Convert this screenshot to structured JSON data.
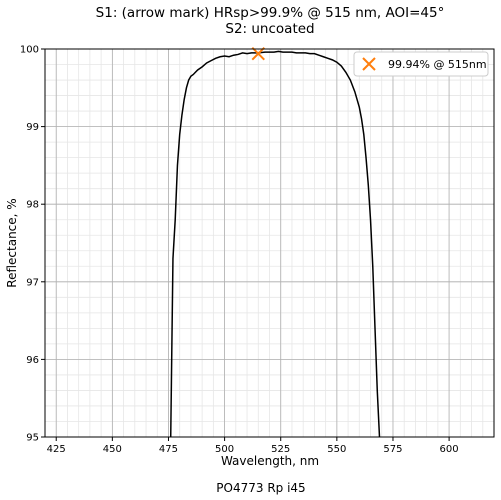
{
  "chart_data": {
    "type": "line",
    "title": [
      "S1: (arrow mark) HRsp>99.9% @ 515 nm, AOI=45°",
      "S2: uncoated"
    ],
    "xlabel": "Wavelength, nm",
    "ylabel": "Reflectance, %",
    "xlim": [
      420,
      620
    ],
    "ylim": [
      95,
      100
    ],
    "xticks": [
      425,
      450,
      475,
      500,
      525,
      550,
      575,
      600
    ],
    "yticks": [
      95,
      96,
      97,
      98,
      99,
      100
    ],
    "grid": true,
    "minor_grid": true,
    "legend_position": "top-right",
    "series": [
      {
        "color": "#000000",
        "x": [
          476,
          477,
          478,
          479,
          480,
          481,
          482,
          483,
          484,
          485,
          486,
          487,
          488,
          490,
          492,
          494,
          496,
          498,
          500,
          502,
          504,
          506,
          508,
          510,
          512,
          515,
          518,
          520,
          522,
          524,
          526,
          528,
          530,
          532,
          534,
          536,
          538,
          540,
          542,
          544,
          546,
          548,
          550,
          552,
          554,
          556,
          558,
          560,
          561,
          562,
          563,
          564,
          565,
          566,
          567,
          568,
          569
        ],
        "y": [
          95.0,
          97.3,
          97.8,
          98.5,
          98.9,
          99.15,
          99.35,
          99.5,
          99.6,
          99.65,
          99.67,
          99.7,
          99.73,
          99.77,
          99.82,
          99.85,
          99.88,
          99.9,
          99.91,
          99.9,
          99.92,
          99.93,
          99.95,
          99.94,
          99.95,
          99.95,
          99.96,
          99.96,
          99.96,
          99.97,
          99.96,
          99.96,
          99.96,
          99.95,
          99.95,
          99.95,
          99.94,
          99.94,
          99.92,
          99.9,
          99.88,
          99.86,
          99.83,
          99.78,
          99.7,
          99.6,
          99.45,
          99.25,
          99.1,
          98.9,
          98.6,
          98.25,
          97.8,
          97.2,
          96.4,
          95.6,
          95.0
        ]
      },
      {
        "name": "99.94% @ 515nm",
        "color": "#ff7f0e",
        "marker": "x",
        "x": [
          515
        ],
        "y": [
          99.94
        ]
      }
    ]
  },
  "footer": "PO4773 Rp i45"
}
